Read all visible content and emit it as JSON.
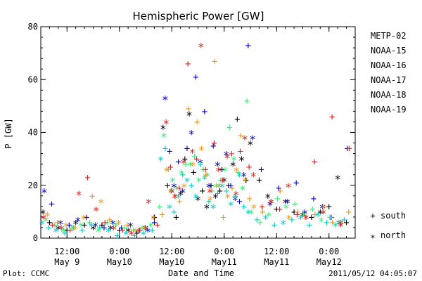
{
  "chart_data": {
    "type": "scatter",
    "title": "Hemispheric Power [GW]",
    "ylabel": "P [GW]",
    "xlabel": "Date and Time",
    "ylim": [
      0,
      80
    ],
    "yticks": [
      0,
      20,
      40,
      60,
      80
    ],
    "xlim_hours": [
      0,
      72
    ],
    "xticks": [
      {
        "hour": 6,
        "top": "12:00",
        "bottom": "May 9"
      },
      {
        "hour": 18,
        "top": "0:00",
        "bottom": "May10"
      },
      {
        "hour": 30,
        "top": "12:00",
        "bottom": "May10"
      },
      {
        "hour": 42,
        "top": "0:00",
        "bottom": "May11"
      },
      {
        "hour": 54,
        "top": "12:00",
        "bottom": "May11"
      },
      {
        "hour": 66,
        "top": "0:00",
        "bottom": "May12"
      }
    ],
    "series": [
      {
        "name": "METP-02",
        "color": "#000000",
        "x": [
          0.5,
          2,
          4,
          6,
          8,
          10,
          12,
          14,
          16,
          18,
          20,
          22,
          24,
          26,
          28,
          29,
          30,
          31,
          32,
          33,
          34,
          35,
          36,
          37,
          38,
          39,
          40,
          41,
          42,
          43,
          44,
          45,
          46,
          47,
          48,
          50,
          52,
          54,
          56,
          58,
          60,
          62,
          64,
          66,
          68,
          70
        ],
        "y": [
          10,
          6,
          4,
          3,
          6,
          5,
          4,
          5,
          4,
          3,
          3,
          2,
          4,
          8,
          42,
          20,
          18,
          8,
          17,
          30,
          47,
          25,
          15,
          18,
          12,
          20,
          16,
          18,
          22,
          20,
          28,
          45,
          30,
          22,
          36,
          22,
          16,
          11,
          14,
          10,
          9,
          8,
          10,
          12,
          23,
          6
        ]
      },
      {
        "name": "NOAA-15",
        "color": "#0000cc",
        "x": [
          0.8,
          2.5,
          4.5,
          6.5,
          8.5,
          10.5,
          12.5,
          14.5,
          16.5,
          18.5,
          20.5,
          22.5,
          24.5,
          26,
          28.5,
          29.5,
          30.5,
          31.5,
          32.5,
          33.5,
          34.5,
          35.5,
          36.5,
          37.5,
          38.5,
          39.5,
          40.5,
          41.5,
          42.5,
          43.5,
          44.5,
          45.5,
          46.5,
          47.5,
          48.5,
          50.5,
          52.5,
          54.5,
          56.5,
          58.5,
          60.5,
          62.5,
          64.5,
          66.5,
          68.5,
          70.2
        ],
        "y": [
          18,
          13,
          6,
          5,
          7,
          8,
          5,
          4,
          6,
          4,
          5,
          3,
          3,
          6,
          53,
          33,
          20,
          29,
          18,
          34,
          40,
          61,
          29,
          48,
          20,
          35,
          28,
          26,
          32,
          20,
          15,
          14,
          24,
          73,
          38,
          26,
          13,
          19,
          14,
          21,
          10,
          15,
          12,
          8,
          6,
          34
        ]
      },
      {
        "name": "NOAA-16",
        "color": "#00cccc",
        "x": [
          0.3,
          1.8,
          3.5,
          5.5,
          7.5,
          9.5,
          11.5,
          13.5,
          15.5,
          17.5,
          19.5,
          21.5,
          23.5,
          25.5,
          27.5,
          28.5,
          29.5,
          30.5,
          31.5,
          32.5,
          33.5,
          34.5,
          35.5,
          36.5,
          37.5,
          38.5,
          39.5,
          40.5,
          41.5,
          42.5,
          43.5,
          44.5,
          45.5,
          46.5,
          47.5,
          49.5,
          51.5,
          53.5,
          55.5,
          57.5,
          59.5,
          61.5,
          63.5,
          65.5,
          67.5,
          69.5
        ],
        "y": [
          6,
          4,
          3,
          2,
          4,
          3,
          5,
          4,
          3,
          1,
          2,
          1,
          2,
          3,
          30,
          34,
          12,
          10,
          16,
          24,
          22,
          20,
          16,
          28,
          23,
          14,
          12,
          17,
          20,
          18,
          13,
          16,
          24,
          12,
          10,
          7,
          8,
          5,
          6,
          7,
          8,
          5,
          9,
          6,
          5,
          7
        ]
      },
      {
        "name": "NOAA-17",
        "color": "#33ee77",
        "x": [
          1.2,
          3.2,
          5.2,
          7.2,
          9.2,
          11.2,
          13.2,
          15.2,
          17.2,
          19.2,
          21.2,
          23.2,
          25.2,
          27.2,
          28.2,
          29.2,
          30.2,
          31.2,
          32.2,
          33.2,
          34.2,
          35.2,
          36.2,
          37.2,
          38.2,
          39.2,
          40.2,
          41.2,
          42.2,
          43.2,
          44.2,
          45.2,
          46.2,
          47.2,
          48.2,
          50.2,
          52.2,
          54.2,
          56.2,
          58.2,
          60.2,
          62.2,
          64.2,
          66.2,
          68.2
        ],
        "y": [
          7,
          5,
          3,
          4,
          5,
          6,
          3,
          6,
          5,
          4,
          3,
          4,
          5,
          12,
          39,
          26,
          22,
          19,
          25,
          28,
          28,
          31,
          22,
          26,
          24,
          18,
          20,
          22,
          26,
          42,
          30,
          25,
          19,
          52,
          10,
          6,
          9,
          15,
          12,
          13,
          9,
          11,
          7,
          8,
          6
        ]
      },
      {
        "name": "NOAA-18",
        "color": "#ee9922",
        "x": [
          1.5,
          3.8,
          5.8,
          7.8,
          9.8,
          11.8,
          13.8,
          15.8,
          17.8,
          19.8,
          21.8,
          23.8,
          25.8,
          27.8,
          28.8,
          29.8,
          30.8,
          31.8,
          32.8,
          33.8,
          34.8,
          35.8,
          36.8,
          37.8,
          38.8,
          39.8,
          40.8,
          41.8,
          42.8,
          43.8,
          44.8,
          45.8,
          46.8,
          47.8,
          48.8,
          50.8,
          52.8,
          54.8,
          56.8,
          58.8,
          60.8,
          62.8,
          64.8,
          66.8,
          68.8,
          70.5
        ],
        "y": [
          9,
          6,
          5,
          4,
          8,
          16,
          14,
          7,
          6,
          5,
          3,
          4,
          8,
          9,
          26,
          18,
          16,
          14,
          20,
          49,
          28,
          44,
          34,
          24,
          15,
          67,
          20,
          8,
          16,
          19,
          26,
          39,
          22,
          15,
          12,
          10,
          14,
          18,
          8,
          10,
          8,
          9,
          12,
          6,
          6,
          10
        ]
      },
      {
        "name": "NOAA-19",
        "color": "#dd2222",
        "x": [
          0.7,
          2.7,
          4.7,
          6.7,
          8.7,
          10.7,
          12.7,
          14.7,
          16.7,
          18.7,
          20.7,
          22.7,
          24.7,
          26.7,
          28.7,
          29.7,
          30.7,
          31.7,
          32.7,
          33.7,
          34.7,
          35.7,
          36.7,
          37.7,
          38.7,
          39.7,
          40.7,
          41.7,
          42.7,
          43.7,
          44.7,
          45.7,
          46.7,
          47.7,
          48.7,
          50.7,
          52.7,
          54.7,
          56.7,
          58.7,
          60.7,
          62.7,
          64.7,
          66.7,
          68.7,
          70.6
        ],
        "y": [
          8,
          5,
          4,
          3,
          17,
          23,
          11,
          6,
          4,
          3,
          2,
          3,
          14,
          5,
          44,
          27,
          16,
          19,
          29,
          66,
          33,
          30,
          73,
          26,
          18,
          36,
          26,
          22,
          31,
          32,
          17,
          33,
          38,
          27,
          24,
          12,
          14,
          11,
          20,
          9,
          8,
          29,
          10,
          46,
          5,
          34
        ]
      }
    ],
    "legend_placement": "right",
    "symbols": [
      {
        "glyph": "+",
        "label": "south"
      },
      {
        "glyph": "*",
        "label": "north"
      }
    ]
  },
  "footer": {
    "left": "Plot: CCMC",
    "right": "2011/05/12 04:05:07"
  }
}
